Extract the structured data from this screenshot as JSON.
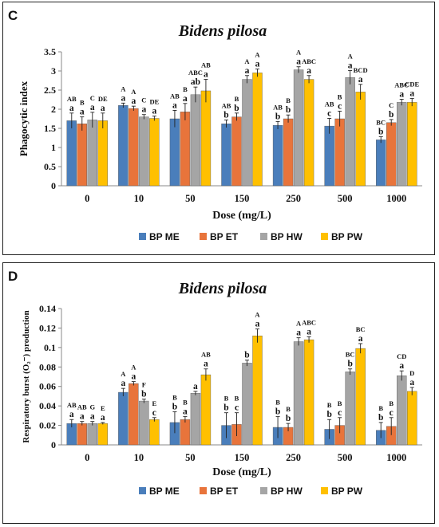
{
  "colors": {
    "ME": "#4A7EBB",
    "ET": "#E8743B",
    "HW": "#A5A5A5",
    "PW": "#FFC000"
  },
  "chart_data": [
    {
      "panel_label": "C",
      "type": "bar",
      "title": "Bidens pilosa",
      "xlabel": "Dose (mg/L)",
      "ylabel": "Phagocytic index",
      "ylim": [
        0,
        3.5
      ],
      "yticks": [
        "0",
        "0.5",
        "1",
        "1.5",
        "2",
        "2.5",
        "3",
        "3.5"
      ],
      "categories": [
        "0",
        "10",
        "50",
        "150",
        "250",
        "500",
        "1000"
      ],
      "legend": "bottom",
      "grid": false,
      "series": [
        {
          "name": "BP ME",
          "color": "#4A7EBB",
          "values": [
            1.7,
            2.1,
            1.75,
            1.62,
            1.58,
            1.56,
            1.2
          ],
          "errors": [
            0.2,
            0.06,
            0.22,
            0.1,
            0.1,
            0.2,
            0.08
          ],
          "lower": [
            "a",
            "a",
            "a",
            "b",
            "b",
            "c",
            "b"
          ],
          "upper": [
            "AB",
            "A",
            "AB",
            "AB",
            "AB",
            "AB",
            "BC"
          ]
        },
        {
          "name": "BP ET",
          "color": "#E8743B",
          "values": [
            1.62,
            2.02,
            1.93,
            1.8,
            1.75,
            1.75,
            1.65
          ],
          "errors": [
            0.18,
            0.06,
            0.22,
            0.1,
            0.1,
            0.2,
            0.08
          ],
          "lower": [
            "a",
            "a",
            "a",
            "b",
            "b",
            "c",
            "b"
          ],
          "upper": [
            "B",
            "A",
            "B",
            "B",
            "B",
            "B",
            "C"
          ]
        },
        {
          "name": "BP HW",
          "color": "#A5A5A5",
          "values": [
            1.72,
            1.8,
            2.38,
            2.78,
            3.03,
            2.83,
            2.18
          ],
          "errors": [
            0.2,
            0.06,
            0.2,
            0.1,
            0.08,
            0.18,
            0.08
          ],
          "lower": [
            "a",
            "a",
            "ab",
            "a",
            "a",
            "a",
            "a"
          ],
          "upper": [
            "C",
            "C",
            "ABC",
            "A",
            "A",
            "A",
            "ABC"
          ]
        },
        {
          "name": "BP PW",
          "color": "#FFC000",
          "values": [
            1.7,
            1.76,
            2.48,
            2.95,
            2.78,
            2.45,
            2.18
          ],
          "errors": [
            0.2,
            0.06,
            0.3,
            0.1,
            0.1,
            0.2,
            0.1
          ],
          "lower": [
            "a",
            "a",
            "a",
            "a",
            "a",
            "a",
            "a"
          ],
          "upper": [
            "DE",
            "DE",
            "AB",
            "A",
            "ABC",
            "BCD",
            "CDE"
          ]
        }
      ]
    },
    {
      "panel_label": "D",
      "type": "bar",
      "title": "Bidens pilosa",
      "xlabel": "Dose (mg/L)",
      "ylabel": "Respiratory burst (O₂⁻) production",
      "ylim": [
        0,
        0.14
      ],
      "yticks": [
        "0",
        "0.02",
        "0.04",
        "0.06",
        "0.08",
        "0.1",
        "0.12",
        "0.14"
      ],
      "categories": [
        "0",
        "10",
        "50",
        "150",
        "250",
        "500",
        "1000"
      ],
      "legend": "bottom",
      "grid": false,
      "series": [
        {
          "name": "BP ME",
          "color": "#4A7EBB",
          "values": [
            0.022,
            0.054,
            0.023,
            0.02,
            0.018,
            0.016,
            0.015
          ],
          "errors": [
            0.004,
            0.004,
            0.011,
            0.013,
            0.011,
            0.01,
            0.008
          ],
          "lower": [
            "a",
            "a",
            "b",
            "b",
            "b",
            "b",
            "b"
          ],
          "upper": [
            "AB",
            "A",
            "B",
            "B",
            "B",
            "B",
            "B"
          ]
        },
        {
          "name": "BP ET",
          "color": "#E8743B",
          "values": [
            0.022,
            0.063,
            0.026,
            0.021,
            0.018,
            0.02,
            0.019
          ],
          "errors": [
            0.002,
            0.002,
            0.003,
            0.012,
            0.004,
            0.008,
            0.009
          ],
          "lower": [
            "a",
            "a",
            "a",
            "c",
            "b",
            "c",
            "c"
          ],
          "upper": [
            "AB",
            "A",
            "B",
            "B",
            "B",
            "B",
            "B"
          ]
        },
        {
          "name": "BP HW",
          "color": "#A5A5A5",
          "values": [
            0.022,
            0.045,
            0.053,
            0.084,
            0.106,
            0.075,
            0.071
          ],
          "errors": [
            0.002,
            0.002,
            0.002,
            0.003,
            0.004,
            0.003,
            0.005
          ],
          "lower": [
            "a",
            "b",
            "a",
            "b",
            "a",
            "b",
            "a"
          ],
          "upper": [
            "G",
            "F",
            "",
            "",
            "A",
            "BC",
            "CD"
          ]
        },
        {
          "name": "BP PW",
          "color": "#FFC000",
          "values": [
            0.022,
            0.026,
            0.072,
            0.112,
            0.108,
            0.099,
            0.055
          ],
          "errors": [
            0.001,
            0.002,
            0.006,
            0.007,
            0.003,
            0.005,
            0.004
          ],
          "lower": [
            "a",
            "c",
            "a",
            "a",
            "a",
            "a",
            "a"
          ],
          "upper": [
            "E",
            "E",
            "AB",
            "A",
            "ABC",
            "BC",
            "D"
          ]
        }
      ]
    }
  ]
}
